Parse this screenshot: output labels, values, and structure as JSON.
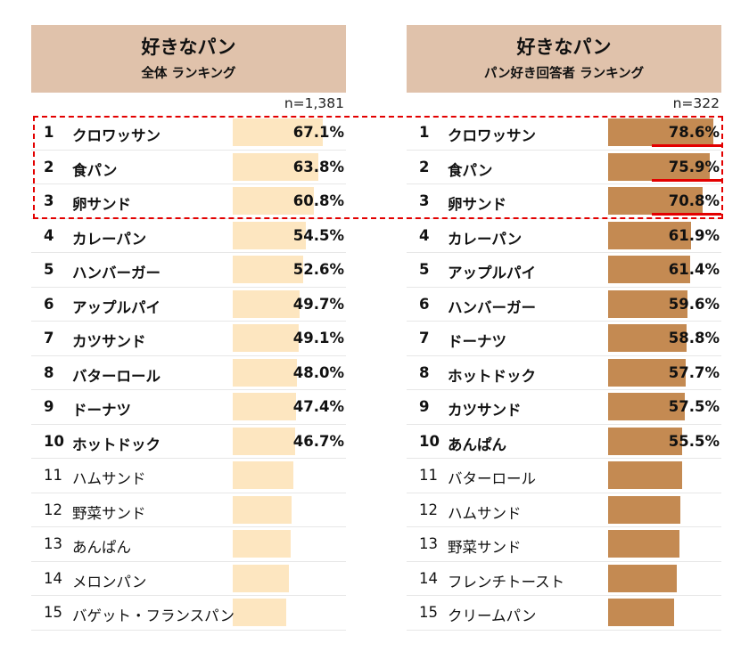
{
  "colors": {
    "header": "#e0c2ab",
    "bar_all": "#fde6c0",
    "bar_lovers": "#c48a52",
    "highlight": "#e30000"
  },
  "chart_data": [
    {
      "type": "bar",
      "title": "好きなパン",
      "subtitle": "全体 ランキング",
      "n_label": "n=1,381",
      "unit": "%",
      "categories": [
        "クロワッサン",
        "食パン",
        "卵サンド",
        "カレーパン",
        "ハンバーガー",
        "アップルパイ",
        "カツサンド",
        "バターロール",
        "ドーナツ",
        "ホットドック",
        "ハムサンド",
        "野菜サンド",
        "あんぱん",
        "メロンパン",
        "バゲット・フランスパン"
      ],
      "ranks": [
        "1",
        "2",
        "3",
        "4",
        "5",
        "6",
        "7",
        "8",
        "9",
        "10",
        "11",
        "12",
        "13",
        "14",
        "15"
      ],
      "values": [
        67.1,
        63.8,
        60.8,
        54.5,
        52.6,
        49.7,
        49.1,
        48.0,
        47.4,
        46.7,
        45.0,
        44.0,
        43.0,
        42.0,
        40.0
      ],
      "labels": [
        "67.1%",
        "63.8%",
        "60.8%",
        "54.5%",
        "52.6%",
        "49.7%",
        "49.1%",
        "48.0%",
        "47.4%",
        "46.7%",
        "",
        "",
        "",
        "",
        ""
      ],
      "xlim": [
        0,
        100
      ],
      "labeled_count": 10
    },
    {
      "type": "bar",
      "title": "好きなパン",
      "subtitle": "パン好き回答者 ランキング",
      "n_label": "n=322",
      "unit": "%",
      "categories": [
        "クロワッサン",
        "食パン",
        "卵サンド",
        "カレーパン",
        "アップルパイ",
        "ハンバーガー",
        "ドーナツ",
        "ホットドック",
        "カツサンド",
        "あんぱん",
        "バターロール",
        "ハムサンド",
        "野菜サンド",
        "フレンチトースト",
        "クリームパン"
      ],
      "ranks": [
        "1",
        "2",
        "3",
        "4",
        "5",
        "6",
        "7",
        "8",
        "9",
        "10",
        "11",
        "12",
        "13",
        "14",
        "15"
      ],
      "values": [
        78.6,
        75.9,
        70.8,
        61.9,
        61.4,
        59.6,
        58.8,
        57.7,
        57.5,
        55.5,
        55.0,
        54.0,
        53.5,
        51.0,
        49.5
      ],
      "labels": [
        "78.6%",
        "75.9%",
        "70.8%",
        "61.9%",
        "61.4%",
        "59.6%",
        "58.8%",
        "57.7%",
        "57.5%",
        "55.5%",
        "",
        "",
        "",
        "",
        ""
      ],
      "xlim": [
        0,
        100
      ],
      "labeled_count": 10,
      "underlined_count": 3
    }
  ]
}
